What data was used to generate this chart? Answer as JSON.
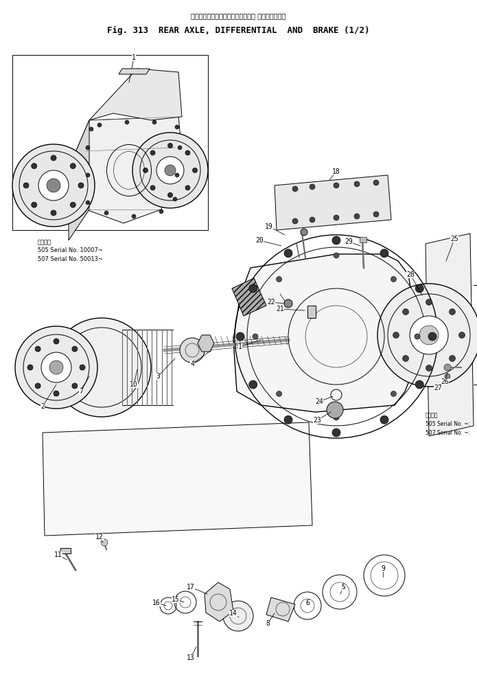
{
  "title_jp": "リヤーアクスル、デファレンシャル およびブレーキ",
  "title_en": "Fig. 313  REAR AXLE, DIFFERENTIAL  AND  BRAKE (1/2)",
  "bg_color": "#ffffff",
  "line_color": "#000000",
  "fig_width": 6.95,
  "fig_height": 9.8,
  "serial_text_left_jp": "適用号機",
  "serial_text_left": "505 Serial No. 10007~\n507 Serial No. 50013~",
  "serial_text_right_jp": "適用号機",
  "serial_text_right": "505 Serial No. ~:\n507 Serial No. ~:"
}
